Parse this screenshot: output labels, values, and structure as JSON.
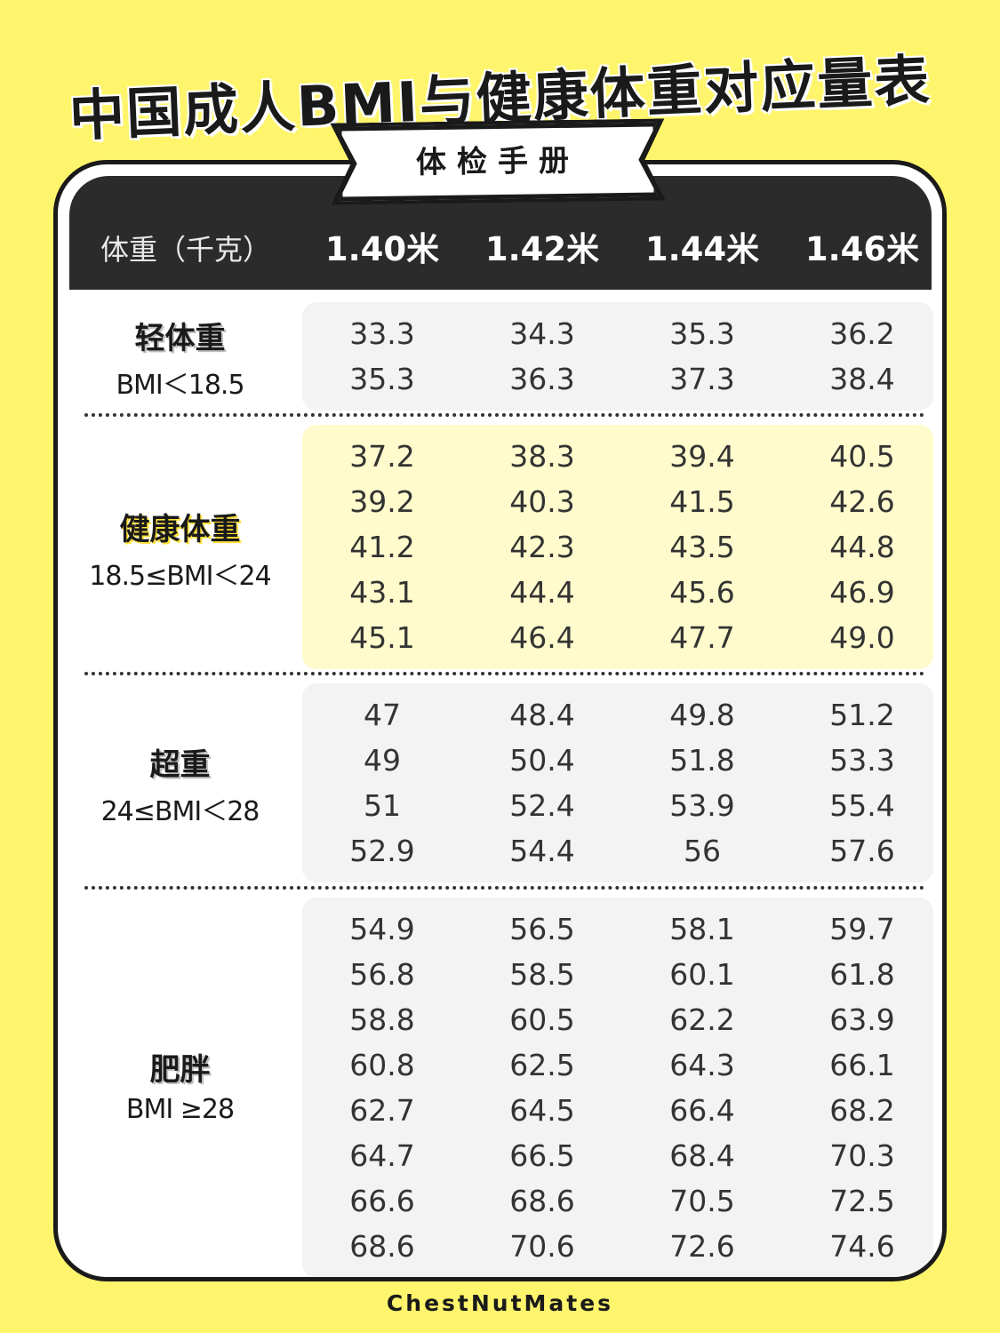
{
  "title": "中国成人BMI与健康体重对应量表",
  "banner": "体检手册",
  "header": {
    "first": "体重（千克）",
    "columns": [
      "1.40米",
      "1.42米",
      "1.44米",
      "1.46米"
    ]
  },
  "sections": [
    {
      "name": "轻体重",
      "range": "BMI＜18.5",
      "rows": [
        [
          "33.3",
          "34.3",
          "35.3",
          "36.2"
        ],
        [
          "35.3",
          "36.3",
          "37.3",
          "38.4"
        ]
      ]
    },
    {
      "name": "健康体重",
      "range": "18.5≤BMI＜24",
      "rows": [
        [
          "37.2",
          "38.3",
          "39.4",
          "40.5"
        ],
        [
          "39.2",
          "40.3",
          "41.5",
          "42.6"
        ],
        [
          "41.2",
          "42.3",
          "43.5",
          "44.8"
        ],
        [
          "43.1",
          "44.4",
          "45.6",
          "46.9"
        ],
        [
          "45.1",
          "46.4",
          "47.7",
          "49.0"
        ]
      ]
    },
    {
      "name": "超重",
      "range": "24≤BMI＜28",
      "rows": [
        [
          "47",
          "48.4",
          "49.8",
          "51.2"
        ],
        [
          "49",
          "50.4",
          "51.8",
          "53.3"
        ],
        [
          "51",
          "52.4",
          "53.9",
          "55.4"
        ],
        [
          "52.9",
          "54.4",
          "56",
          "57.6"
        ]
      ]
    },
    {
      "name": "肥胖",
      "range": "BMI ≥28",
      "rows": [
        [
          "54.9",
          "56.5",
          "58.1",
          "59.7"
        ],
        [
          "56.8",
          "58.5",
          "60.1",
          "61.8"
        ],
        [
          "58.8",
          "60.5",
          "62.2",
          "63.9"
        ],
        [
          "60.8",
          "62.5",
          "64.3",
          "66.1"
        ],
        [
          "62.7",
          "64.5",
          "66.4",
          "68.2"
        ],
        [
          "64.7",
          "66.5",
          "68.4",
          "70.3"
        ],
        [
          "66.6",
          "68.6",
          "70.5",
          "72.5"
        ],
        [
          "68.6",
          "70.6",
          "72.6",
          "74.6"
        ]
      ]
    }
  ],
  "footer": "ChestNutMates"
}
